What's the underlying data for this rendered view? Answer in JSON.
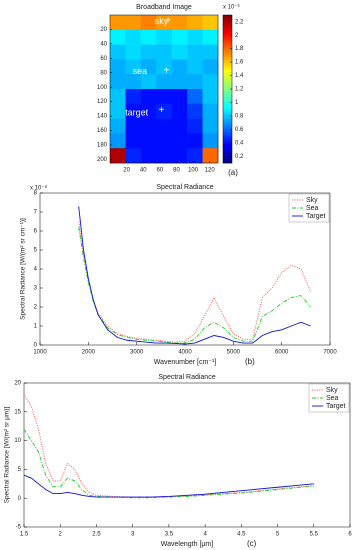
{
  "chart_data": [
    {
      "type": "heatmap",
      "title": "Broadband Image",
      "panel_label": "(a)",
      "xlim": [
        0,
        130
      ],
      "ylim": [
        0,
        205
      ],
      "xticks": [
        20,
        40,
        60,
        80,
        100,
        120
      ],
      "yticks": [
        20,
        40,
        60,
        80,
        100,
        120,
        140,
        160,
        180,
        200
      ],
      "z": [
        [
          1.7,
          1.7,
          1.75,
          1.7,
          1.7,
          1.65,
          1.6
        ],
        [
          0.9,
          0.85,
          0.9,
          0.85,
          0.9,
          0.85,
          0.9
        ],
        [
          0.8,
          0.85,
          0.8,
          0.8,
          0.85,
          0.8,
          0.8
        ],
        [
          0.75,
          0.8,
          0.75,
          0.8,
          0.75,
          0.8,
          0.75
        ],
        [
          0.75,
          0.75,
          0.8,
          0.75,
          0.75,
          0.75,
          0.8
        ],
        [
          0.8,
          0.45,
          0.4,
          0.4,
          0.4,
          0.6,
          0.8
        ],
        [
          0.8,
          0.4,
          0.4,
          0.45,
          0.4,
          0.5,
          0.75
        ],
        [
          0.75,
          0.4,
          0.4,
          0.4,
          0.4,
          0.45,
          0.75
        ],
        [
          0.7,
          0.4,
          0.4,
          0.4,
          0.4,
          0.4,
          0.7
        ],
        [
          2.2,
          0.45,
          0.4,
          0.4,
          0.4,
          0.45,
          1.8
        ]
      ],
      "clim": [
        0.1,
        2.3
      ],
      "cticks": [
        0.2,
        0.4,
        0.6,
        0.8,
        1,
        1.2,
        1.4,
        1.6,
        1.8,
        2,
        2.2
      ],
      "c_exponent": "x 10⁻³",
      "colormap": "jet",
      "annotations": [
        "sky",
        "sea",
        "target"
      ]
    },
    {
      "type": "line",
      "title": "Spectral Radiance",
      "panel_label": "(b)",
      "xlabel": "Wavenumber [cm⁻¹]",
      "ylabel": "Spectral Radiance [W/(m² sr cm⁻¹)]",
      "y_exponent": "x 10⁻⁸",
      "xlim": [
        1000,
        7000
      ],
      "ylim": [
        0,
        8
      ],
      "xticks": [
        1000,
        2000,
        3000,
        4000,
        5000,
        6000,
        7000
      ],
      "yticks": [
        0,
        1,
        2,
        3,
        4,
        5,
        6,
        7,
        8
      ],
      "legend": "upper right",
      "x": [
        1800,
        1900,
        2000,
        2100,
        2200,
        2400,
        2600,
        2800,
        3000,
        3200,
        3400,
        3600,
        3800,
        4000,
        4200,
        4400,
        4600,
        4800,
        5000,
        5200,
        5400,
        5600,
        5800,
        6000,
        6200,
        6400,
        6600
      ],
      "series": [
        {
          "name": "Sky",
          "color": "#ff6060",
          "linestyle": "dotted",
          "values": [
            6.5,
            4.8,
            3.4,
            2.4,
            1.7,
            1.0,
            0.6,
            0.45,
            0.35,
            0.3,
            0.25,
            0.2,
            0.15,
            0.2,
            0.6,
            1.5,
            2.5,
            1.5,
            0.6,
            0.3,
            0.3,
            2.5,
            3.0,
            3.8,
            4.2,
            4.0,
            2.8
          ]
        },
        {
          "name": "Sea",
          "color": "#22cc22",
          "linestyle": "dashdot",
          "values": [
            6.2,
            4.6,
            3.3,
            2.3,
            1.6,
            0.9,
            0.55,
            0.4,
            0.3,
            0.25,
            0.2,
            0.15,
            0.1,
            0.1,
            0.3,
            0.9,
            1.2,
            0.9,
            0.4,
            0.2,
            0.2,
            1.5,
            1.8,
            2.2,
            2.5,
            2.6,
            2.0
          ]
        },
        {
          "name": "Target",
          "color": "#1010dd",
          "linestyle": "solid",
          "values": [
            7.3,
            5.0,
            3.5,
            2.4,
            1.6,
            0.8,
            0.4,
            0.25,
            0.2,
            0.15,
            0.1,
            0.1,
            0.08,
            0.05,
            0.1,
            0.3,
            0.5,
            0.4,
            0.2,
            0.1,
            0.1,
            0.5,
            0.7,
            0.8,
            1.0,
            1.2,
            1.0
          ]
        }
      ]
    },
    {
      "type": "line",
      "title": "Spectral Radiance",
      "panel_label": "(c)",
      "xlabel": "Wavelength [μm]",
      "ylabel": "Spectral Radiance [W/(m² sr μm)]",
      "xlim": [
        1.5,
        6
      ],
      "ylim": [
        -5,
        20
      ],
      "xticks": [
        1.5,
        2,
        2.5,
        3,
        3.5,
        4,
        4.5,
        5,
        5.5,
        6
      ],
      "yticks": [
        -5,
        0,
        5,
        10,
        15,
        20
      ],
      "legend": "upper right",
      "x": [
        1.5,
        1.6,
        1.7,
        1.8,
        1.9,
        2.0,
        2.1,
        2.2,
        2.3,
        2.4,
        2.5,
        2.75,
        3.0,
        3.25,
        3.5,
        3.75,
        4.0,
        4.25,
        4.5,
        4.75,
        5.0,
        5.25,
        5.5
      ],
      "series": [
        {
          "name": "Sky",
          "color": "#ff6060",
          "linestyle": "dotted",
          "values": [
            18,
            16,
            12,
            6,
            3,
            3,
            6,
            5,
            2.5,
            1,
            0.5,
            0.3,
            0.2,
            0.2,
            0.3,
            0.4,
            0.6,
            0.8,
            1.0,
            1.3,
            1.6,
            1.9,
            2.2
          ]
        },
        {
          "name": "Sea",
          "color": "#22cc22",
          "linestyle": "dashdot",
          "values": [
            12,
            10,
            8,
            4,
            2,
            2,
            3.5,
            3,
            1.5,
            0.5,
            0.3,
            0.2,
            0.1,
            0.1,
            0.2,
            0.3,
            0.5,
            0.7,
            0.9,
            1.2,
            1.5,
            1.8,
            2.1
          ]
        },
        {
          "name": "Target",
          "color": "#1010dd",
          "linestyle": "solid",
          "values": [
            4,
            3.5,
            2.5,
            1.5,
            0.8,
            0.8,
            1.0,
            0.8,
            0.5,
            0.3,
            0.2,
            0.2,
            0.2,
            0.2,
            0.3,
            0.5,
            0.7,
            1.0,
            1.3,
            1.6,
            1.9,
            2.2,
            2.5
          ]
        }
      ]
    }
  ]
}
